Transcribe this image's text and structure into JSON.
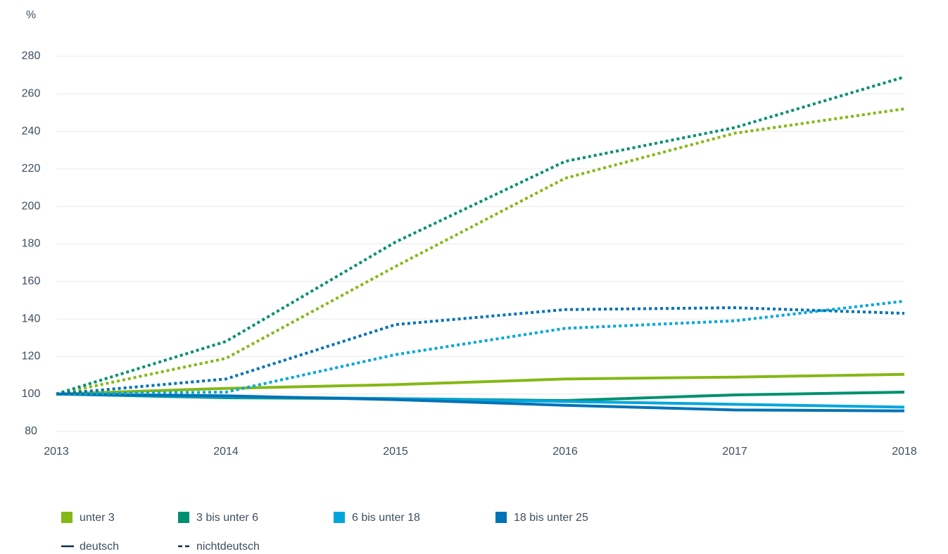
{
  "chart_data": {
    "type": "line",
    "y_label": "%",
    "x": [
      2013,
      2014,
      2015,
      2016,
      2017,
      2018
    ],
    "xlim": [
      2013,
      2018
    ],
    "xticks": [
      2013,
      2014,
      2015,
      2016,
      2017,
      2018
    ],
    "ylim": [
      80,
      280
    ],
    "yticks": [
      80,
      100,
      120,
      140,
      160,
      180,
      200,
      220,
      240,
      260,
      280
    ],
    "grid": true,
    "styles": [
      {
        "name": "deutsch",
        "dash": "solid"
      },
      {
        "name": "nichtdeutsch",
        "dash": "dotted"
      }
    ],
    "groups": [
      {
        "name": "unter 3",
        "color": "#84b816",
        "lines": [
          [
            100,
            103,
            105,
            108,
            109,
            110.5
          ],
          [
            100,
            119,
            168,
            215,
            239,
            252
          ]
        ]
      },
      {
        "name": "3 bis unter 6",
        "color": "#00906f",
        "lines": [
          [
            100,
            98,
            97.5,
            96.5,
            99.5,
            101
          ],
          [
            100,
            128,
            181,
            224,
            242,
            269
          ]
        ]
      },
      {
        "name": "6 bis unter 18",
        "color": "#00a6dc",
        "lines": [
          [
            100,
            98.5,
            97.5,
            96,
            94.5,
            93
          ],
          [
            100,
            101,
            121,
            135,
            139,
            149.5
          ]
        ]
      },
      {
        "name": "18 bis unter 25",
        "color": "#0072b5",
        "lines": [
          [
            100,
            99,
            97,
            94,
            91.5,
            91
          ],
          [
            100,
            108,
            137,
            145,
            146,
            143
          ]
        ]
      }
    ]
  }
}
